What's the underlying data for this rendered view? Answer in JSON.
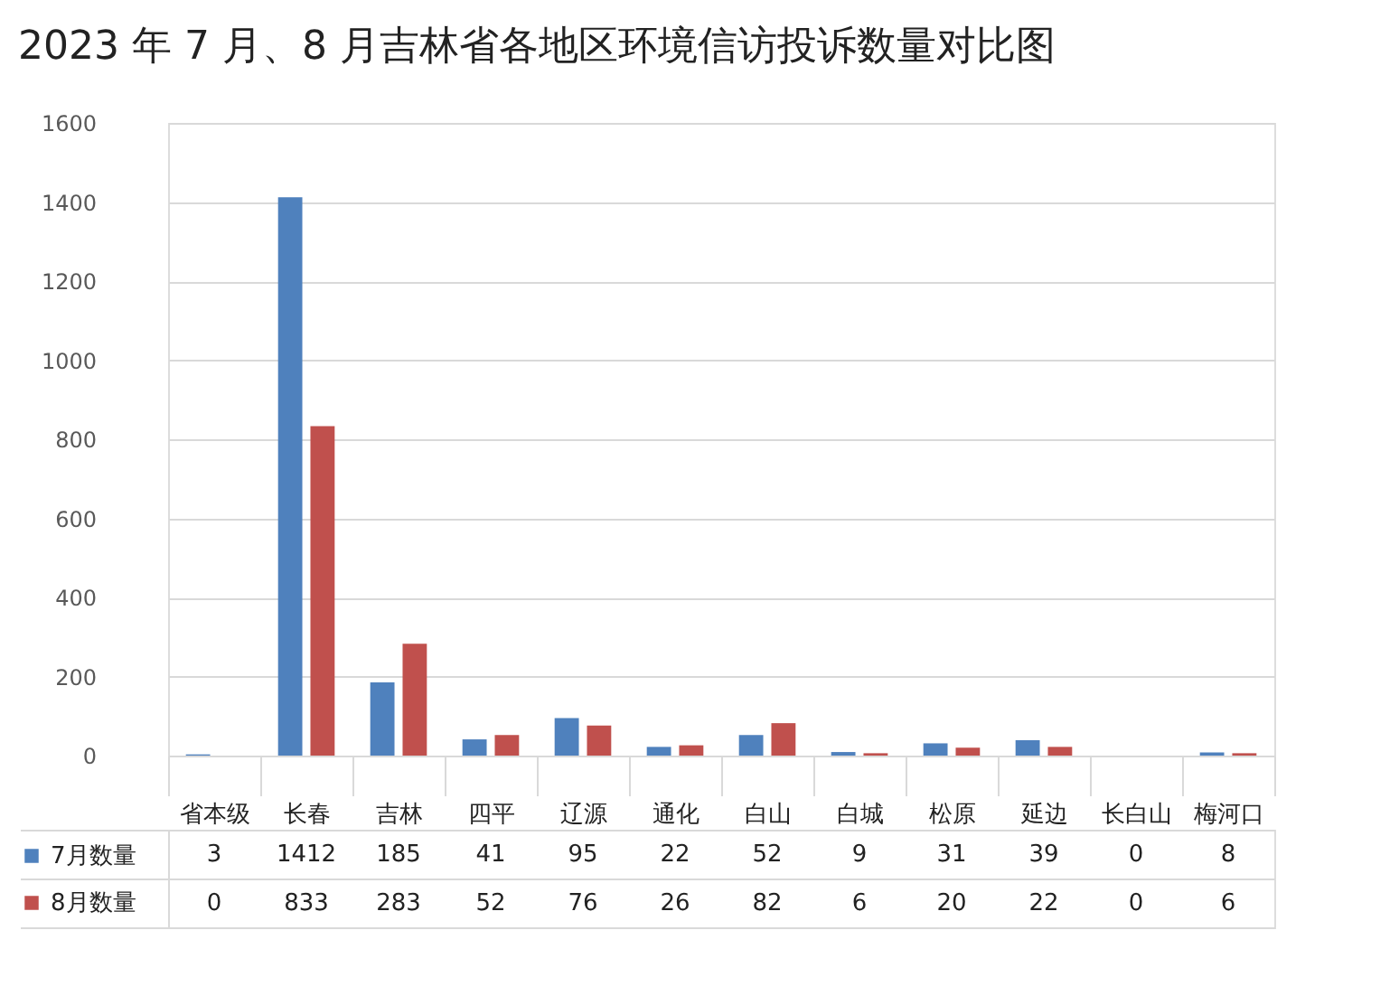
{
  "chart_data": {
    "type": "bar",
    "title": "2023 年 7 月、8 月吉林省各地区环境信访投诉数量对比图",
    "categories": [
      "省本级",
      "长春",
      "吉林",
      "四平",
      "辽源",
      "通化",
      "白山",
      "白城",
      "松原",
      "延边",
      "长白山",
      "梅河口"
    ],
    "series": [
      {
        "name": "7月数量",
        "color": "#4f81bd",
        "values": [
          3,
          1412,
          185,
          41,
          95,
          22,
          52,
          9,
          31,
          39,
          0,
          8
        ]
      },
      {
        "name": "8月数量",
        "color": "#c0504d",
        "values": [
          0,
          833,
          283,
          52,
          76,
          26,
          82,
          6,
          20,
          22,
          0,
          6
        ]
      }
    ],
    "ylim": [
      0,
      1600
    ],
    "yticks": [
      0,
      200,
      400,
      600,
      800,
      1000,
      1200,
      1400,
      1600
    ],
    "grid": "y",
    "legend": "bottom",
    "data_labels": true
  }
}
